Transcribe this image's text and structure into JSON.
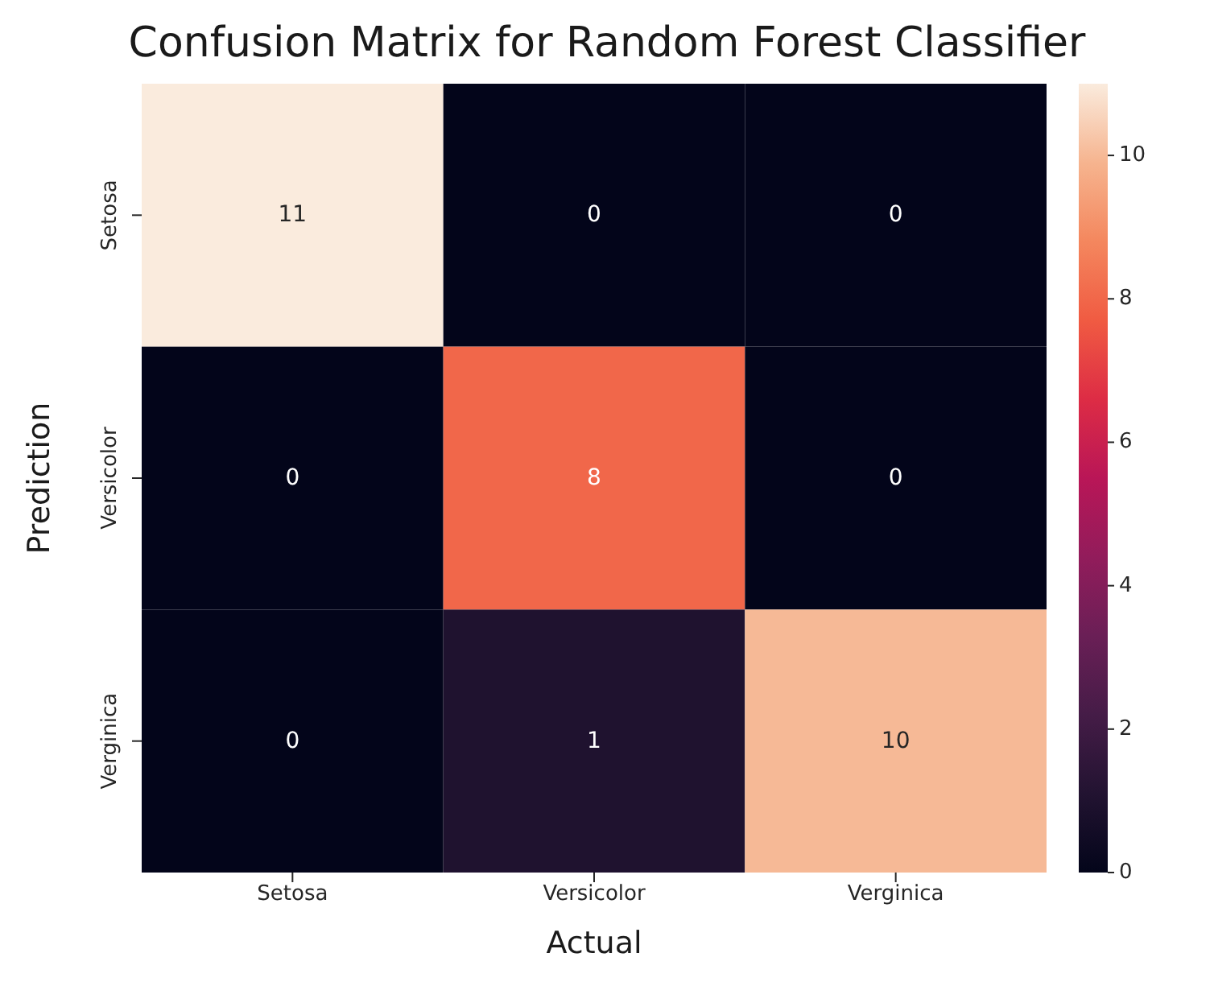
{
  "chart_data": {
    "type": "heatmap",
    "title": "Confusion Matrix for Random Forest Classifier",
    "xlabel": "Actual",
    "ylabel": "Prediction",
    "categories": [
      "Setosa",
      "Versicolor",
      "Verginica"
    ],
    "y_categories": [
      "Setosa",
      "Versicolor",
      "Verginica"
    ],
    "cells": [
      [
        11,
        0,
        0
      ],
      [
        0,
        8,
        0
      ],
      [
        0,
        1,
        10
      ]
    ],
    "clim": [
      0,
      11
    ],
    "cticks": [
      0,
      2,
      4,
      6,
      8,
      10
    ],
    "data_labels": true
  }
}
